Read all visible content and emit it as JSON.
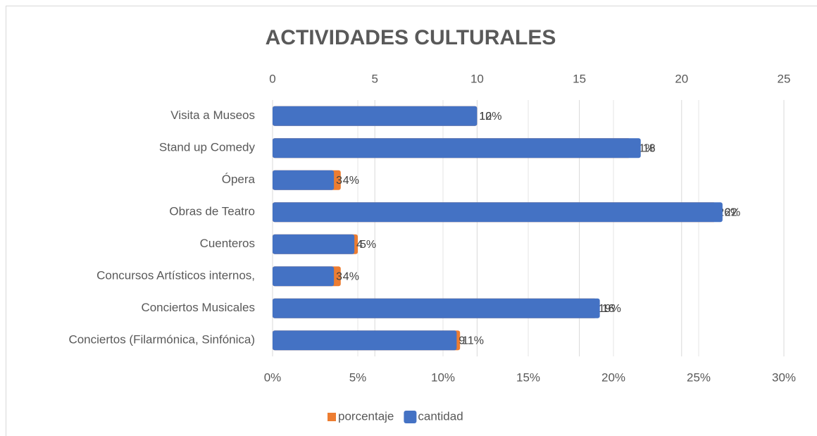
{
  "chart_data": {
    "type": "bar",
    "orientation": "horizontal",
    "title": "ACTIVIDADES CULTURALES",
    "categories": [
      "Visita a Museos",
      "Stand up Comedy",
      "Ópera",
      "Obras de Teatro",
      "Cuenteros",
      "Concursos Artísticos internos,",
      "Conciertos Musicales",
      "Conciertos (Filarmónica, Sinfónica)"
    ],
    "series": [
      {
        "name": "porcentaje",
        "color": "#ed7d31",
        "axis": "x",
        "values": [
          12,
          21,
          4,
          26,
          5,
          4,
          19,
          11
        ],
        "value_labels": [
          "12%",
          "21%",
          "4%",
          "26%",
          "5%",
          "4%",
          "19%",
          "11%"
        ]
      },
      {
        "name": "cantidad",
        "color": "#4472c4",
        "axis": "x2",
        "values": [
          10,
          18,
          3,
          22,
          4,
          3,
          16,
          9
        ]
      }
    ],
    "xlim": [
      0,
      30
    ],
    "xticks": [
      {
        "value": 0,
        "label": "0%"
      },
      {
        "value": 5,
        "label": "5%"
      },
      {
        "value": 10,
        "label": "10%"
      },
      {
        "value": 15,
        "label": "15%"
      },
      {
        "value": 20,
        "label": "20%"
      },
      {
        "value": 25,
        "label": "25%"
      },
      {
        "value": 30,
        "label": "30%"
      }
    ],
    "x2lim": [
      0,
      25
    ],
    "x2ticks": [
      0,
      5,
      10,
      15,
      20,
      25
    ],
    "grid": true,
    "legend": "bottom"
  }
}
